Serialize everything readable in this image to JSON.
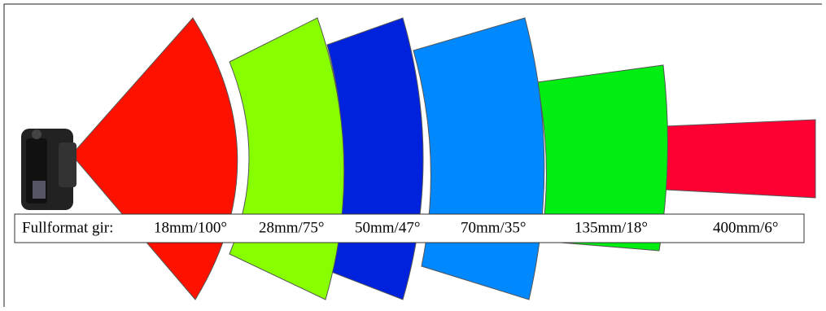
{
  "label": "Fullformat gir:",
  "lenses": [
    "18mm/100°",
    "28mm/75°",
    "50mm/47°",
    "70mm/35°",
    "135mm/18°",
    "400mm/6°"
  ]
}
